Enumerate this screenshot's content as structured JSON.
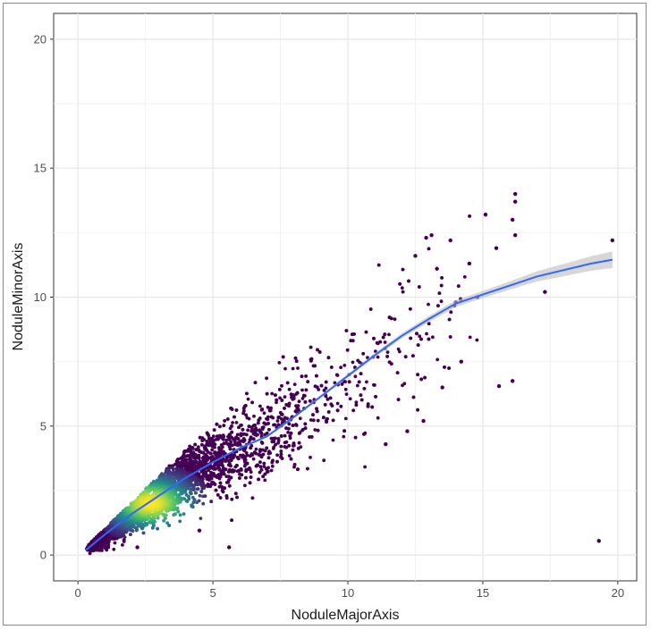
{
  "chart_data": {
    "type": "scatter",
    "xlabel": "NoduleMajorAxis",
    "ylabel": "NoduleMinorAxis",
    "xlim": [
      -0.9,
      20.7
    ],
    "ylim": [
      -1.0,
      21.0
    ],
    "x_ticks": [
      0,
      5,
      10,
      15,
      20
    ],
    "y_ticks": [
      0,
      5,
      10,
      15,
      20
    ],
    "x_tick_labels": [
      "0",
      "5",
      "10",
      "15",
      "20"
    ],
    "y_tick_labels": [
      "0",
      "5",
      "10",
      "15",
      "20"
    ],
    "grid": true,
    "point_color_low": "#440154",
    "density_colormap": [
      "#440154",
      "#3b528b",
      "#21908c",
      "#5dc863",
      "#fde725"
    ],
    "smooth_line_color": "#3366ff",
    "confidence_band_color": "#bdbdbd",
    "outlier_points": [
      {
        "x": 16.2,
        "y": 14.0
      },
      {
        "x": 16.2,
        "y": 13.7
      },
      {
        "x": 16.1,
        "y": 13.0
      },
      {
        "x": 15.1,
        "y": 13.2
      },
      {
        "x": 16.2,
        "y": 12.4
      },
      {
        "x": 15.5,
        "y": 11.9
      },
      {
        "x": 19.8,
        "y": 12.2
      },
      {
        "x": 17.3,
        "y": 10.2
      },
      {
        "x": 16.1,
        "y": 6.75
      },
      {
        "x": 15.6,
        "y": 6.55
      },
      {
        "x": 19.3,
        "y": 0.55
      },
      {
        "x": 14.2,
        "y": 7.5
      },
      {
        "x": 14.0,
        "y": 9.8
      },
      {
        "x": 13.1,
        "y": 12.4
      },
      {
        "x": 12.9,
        "y": 12.3
      },
      {
        "x": 13.8,
        "y": 12.2
      },
      {
        "x": 14.5,
        "y": 11.3
      },
      {
        "x": 14.8,
        "y": 10.0
      },
      {
        "x": 13.5,
        "y": 6.5
      },
      {
        "x": 12.8,
        "y": 5.2
      },
      {
        "x": 12.2,
        "y": 4.8
      },
      {
        "x": 11.4,
        "y": 4.3
      },
      {
        "x": 5.6,
        "y": 0.3
      },
      {
        "x": 4.5,
        "y": 0.95
      },
      {
        "x": 2.2,
        "y": 0.3
      },
      {
        "x": 12.5,
        "y": 11.6
      },
      {
        "x": 13.3,
        "y": 11.1
      }
    ],
    "smooth_fit": {
      "x": [
        0.3,
        1,
        2,
        3,
        4,
        5,
        6,
        7,
        8,
        9,
        10,
        11,
        12,
        13,
        14,
        15,
        16,
        17,
        18,
        19,
        19.8
      ],
      "y": [
        0.2,
        0.8,
        1.6,
        2.3,
        3.0,
        3.6,
        4.15,
        4.6,
        5.35,
        6.15,
        6.95,
        7.75,
        8.5,
        9.15,
        9.75,
        10.1,
        10.45,
        10.8,
        11.05,
        11.3,
        11.45
      ],
      "band_halfwidth": [
        0.04,
        0.02,
        0.02,
        0.02,
        0.02,
        0.03,
        0.04,
        0.05,
        0.05,
        0.06,
        0.07,
        0.08,
        0.1,
        0.12,
        0.13,
        0.14,
        0.16,
        0.2,
        0.24,
        0.28,
        0.32
      ]
    },
    "cloud": {
      "x_range": [
        0.3,
        14.9
      ],
      "density_peak": {
        "x": 2.7,
        "y": 2.0
      }
    }
  }
}
